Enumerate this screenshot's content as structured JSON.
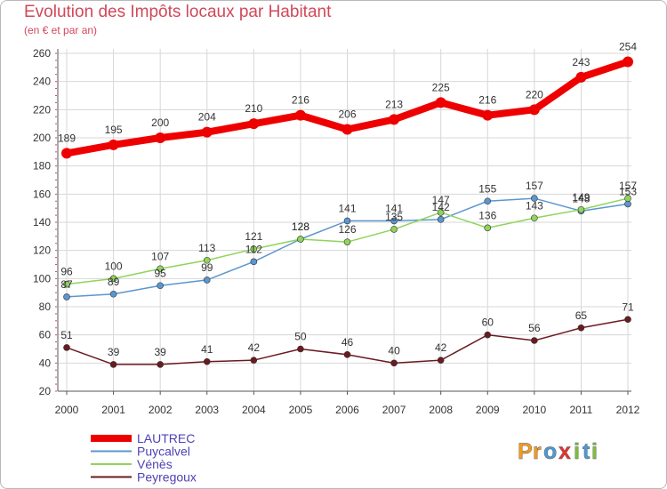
{
  "header": {
    "title": "Evolution des Impôts locaux par Habitant",
    "subtitle": "(en € et par an)"
  },
  "logo": {
    "letters": [
      "P",
      "r",
      "o",
      "x",
      "i",
      "t",
      "i"
    ],
    "colors": [
      "#f39a1e",
      "#f39a1e",
      "#4a9ad6",
      "#e8322e",
      "#7cbf3c",
      "#4a9ad6",
      "#7cbf3c"
    ]
  },
  "chart_data": {
    "type": "line",
    "x": [
      "2000",
      "2001",
      "2002",
      "2003",
      "2004",
      "2005",
      "2006",
      "2007",
      "2008",
      "2009",
      "2010",
      "2011",
      "2012"
    ],
    "ylim": [
      20,
      260
    ],
    "yticks": [
      20,
      40,
      60,
      80,
      100,
      120,
      140,
      160,
      180,
      200,
      220,
      240,
      260
    ],
    "grid": true,
    "legend_position": "bottom-left",
    "series": [
      {
        "name": "LAUTREC",
        "values": [
          189,
          195,
          200,
          204,
          210,
          216,
          206,
          213,
          225,
          216,
          220,
          243,
          254
        ],
        "color": "#ee0000"
      },
      {
        "name": "Puycalvel",
        "values": [
          87,
          89,
          95,
          99,
          112,
          128,
          141,
          141,
          142,
          155,
          157,
          148,
          153
        ],
        "color": "#5b96cf"
      },
      {
        "name": "Vénès",
        "values": [
          96,
          100,
          107,
          113,
          121,
          128,
          126,
          135,
          147,
          136,
          143,
          149,
          157
        ],
        "color": "#8fd45b"
      },
      {
        "name": "Peyregoux",
        "values": [
          51,
          39,
          39,
          41,
          42,
          50,
          46,
          40,
          42,
          60,
          56,
          65,
          71
        ],
        "color": "#6b1a20"
      }
    ]
  }
}
